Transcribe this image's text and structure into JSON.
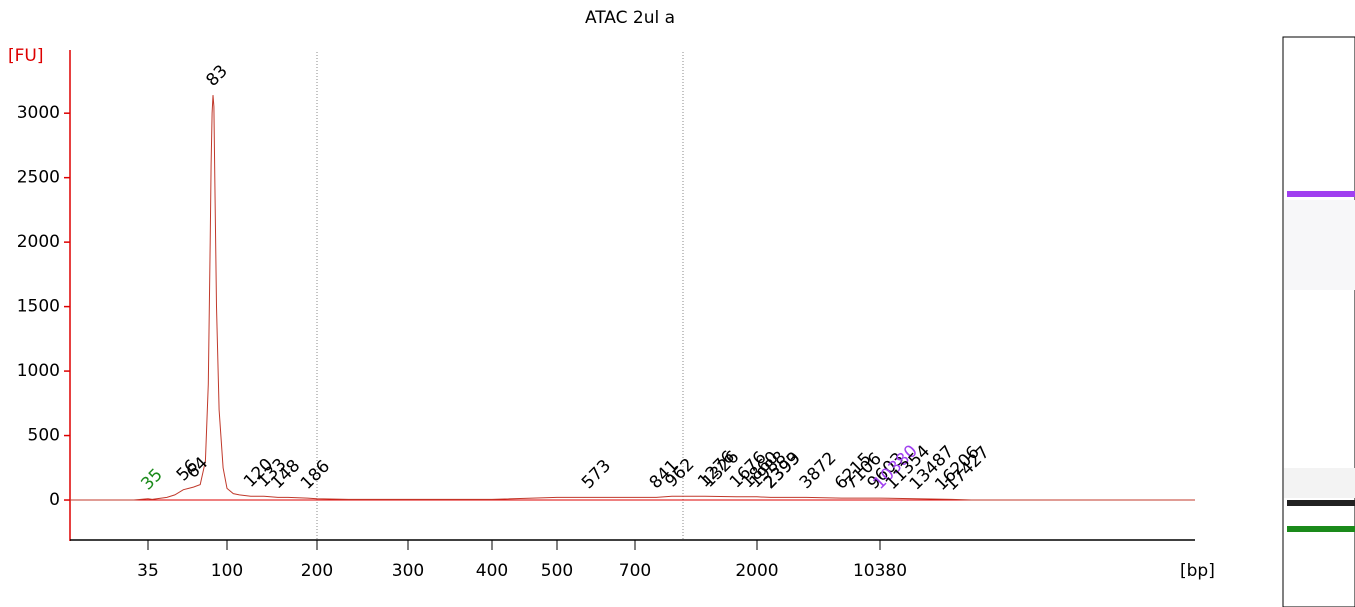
{
  "chart_data": {
    "type": "line",
    "title": "ATAC 2ul a",
    "y_label": "[FU]",
    "x_label": "[bp]",
    "x": [
      15,
      30,
      35,
      37,
      45,
      50,
      56,
      60,
      64,
      70,
      75,
      78,
      80,
      81,
      82,
      83,
      84,
      85,
      87,
      90,
      95,
      100,
      105,
      110,
      120,
      133,
      148,
      160,
      186,
      200,
      230,
      400,
      500,
      573,
      700,
      841,
      962,
      1276,
      1676,
      2000,
      2399,
      3872,
      6215,
      10380,
      13487,
      17427,
      20000,
      100000
    ],
    "series": [
      {
        "color": "#c0392b",
        "values": [
          0,
          0,
          10,
          5,
          20,
          40,
          80,
          90,
          100,
          120,
          300,
          900,
          2000,
          2600,
          3000,
          3140,
          3050,
          2500,
          1500,
          700,
          250,
          90,
          50,
          40,
          30,
          30,
          20,
          20,
          15,
          10,
          5,
          5,
          20,
          20,
          20,
          20,
          30,
          30,
          25,
          25,
          20,
          20,
          15,
          15,
          10,
          5,
          0,
          0
        ]
      }
    ],
    "peaks": {
      "values": [
        35,
        56,
        64,
        83,
        120,
        133,
        148,
        186,
        573,
        841,
        962,
        1276,
        1326,
        1676,
        1860,
        1988,
        2393,
        2399,
        3872,
        6215,
        7106,
        9603,
        10380,
        11354,
        13487,
        16206,
        17427
      ],
      "colors": [
        "#1a8a1a",
        "#000",
        "#000",
        "#000",
        "#000",
        "#000",
        "#000",
        "#000",
        "#000",
        "#000",
        "#000",
        "#000",
        "#000",
        "#000",
        "#000",
        "#000",
        "#000",
        "#000",
        "#000",
        "#000",
        "#000",
        "#000",
        "#a040f0",
        "#000",
        "#000",
        "#000",
        "#000"
      ]
    },
    "xlim": [
      15,
      100000
    ],
    "xticks": [
      35,
      100,
      200,
      300,
      400,
      500,
      700,
      2000,
      10380
    ],
    "ylim": [
      -310,
      3490
    ],
    "yticks": [
      0,
      500,
      1000,
      1500,
      2000,
      2500,
      3000
    ]
  }
}
